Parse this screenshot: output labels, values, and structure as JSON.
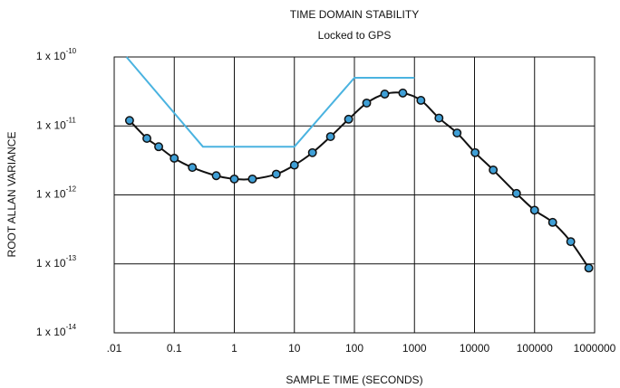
{
  "chart_data": {
    "type": "line",
    "title": "TIME DOMAIN STABILITY",
    "subtitle": "Locked to GPS",
    "x_label": "SAMPLE TIME (SECONDS)",
    "y_label": "ROOT ALLAN VARIANCE",
    "x_scale": "log",
    "y_scale": "log",
    "grid": true,
    "xlim": [
      0.01,
      1000000
    ],
    "ylim": [
      1e-14,
      1e-10
    ],
    "xticks": [
      {
        "value": 0.01,
        "label": ".01"
      },
      0.1,
      1,
      10,
      100,
      1000,
      10000,
      100000,
      1000000
    ],
    "yticks": [
      {
        "value": 1e-10,
        "label": "1 x 10",
        "superscript": "-10"
      },
      {
        "value": 1e-11,
        "label": "1 x 10",
        "superscript": "-11"
      },
      {
        "value": 1e-12,
        "label": "1 x 10",
        "superscript": "-12"
      },
      {
        "value": 1e-13,
        "label": "1 x 10",
        "superscript": "-13"
      },
      {
        "value": 1e-14,
        "label": "1 x 10",
        "superscript": "-14"
      }
    ],
    "series": [
      {
        "color": "#4ab3e0",
        "markers": false,
        "smooth": false,
        "x": [
          0.016,
          0.3,
          10,
          100,
          1000
        ],
        "values": [
          1e-10,
          5e-12,
          5e-12,
          5e-11,
          5e-11
        ]
      },
      {
        "color": "#111111",
        "marker_color": "#3f9fd6",
        "markers": true,
        "smooth": true,
        "x": [
          0.018,
          0.035,
          0.055,
          0.1,
          0.2,
          0.5,
          1,
          2,
          5,
          10,
          20,
          40,
          80,
          160,
          320,
          640,
          1280,
          2560,
          5120,
          10240,
          20480,
          50000,
          100000,
          200000,
          400000,
          800000
        ],
        "values": [
          1.2e-11,
          6.6e-12,
          5e-12,
          3.4e-12,
          2.5e-12,
          1.9e-12,
          1.7e-12,
          1.7e-12,
          2e-12,
          2.7e-12,
          4.1e-12,
          7e-12,
          1.25e-11,
          2.15e-11,
          2.9e-11,
          3e-11,
          2.35e-11,
          1.3e-11,
          7.9e-12,
          4.1e-12,
          2.3e-12,
          1.05e-12,
          6e-13,
          4e-13,
          2.1e-13,
          8.7e-14
        ]
      }
    ]
  }
}
